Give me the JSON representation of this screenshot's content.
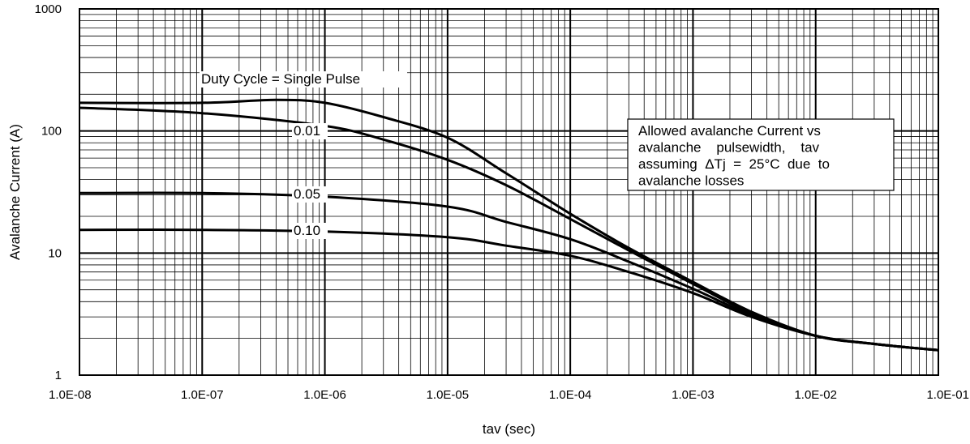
{
  "chart_data": {
    "type": "line",
    "xlabel": "tav (sec)",
    "ylabel": "Avalanche Current (A)",
    "x_scale": "log",
    "y_scale": "log",
    "xlim": [
      1e-08,
      0.1
    ],
    "ylim": [
      1,
      1000
    ],
    "grid": true,
    "x_tick_labels": [
      "1.0E-08",
      "1.0E-07",
      "1.0E-06",
      "1.0E-05",
      "1.0E-04",
      "1.0E-03",
      "1.0E-02",
      "1.0E-01"
    ],
    "y_tick_labels": [
      "1",
      "10",
      "100",
      "1000"
    ],
    "series": [
      {
        "name": "Duty Cycle = Single Pulse",
        "points": [
          [
            1e-08,
            170
          ],
          [
            1e-07,
            170
          ],
          [
            4e-07,
            180
          ],
          [
            1e-06,
            170
          ],
          [
            3e-06,
            130
          ],
          [
            1e-05,
            88
          ],
          [
            3e-05,
            45
          ],
          [
            0.0001,
            21
          ],
          [
            0.0003,
            11
          ],
          [
            0.001,
            5.8
          ],
          [
            0.003,
            3.3
          ],
          [
            0.01,
            2.1
          ],
          [
            0.03,
            1.8
          ],
          [
            0.1,
            1.6
          ]
        ]
      },
      {
        "name": "0.01",
        "points": [
          [
            1e-08,
            155
          ],
          [
            1e-07,
            140
          ],
          [
            1e-06,
            110
          ],
          [
            3e-06,
            85
          ],
          [
            1e-05,
            58
          ],
          [
            3e-05,
            36
          ],
          [
            0.0001,
            19
          ],
          [
            0.0003,
            10.5
          ],
          [
            0.001,
            5.6
          ],
          [
            0.003,
            3.2
          ],
          [
            0.01,
            2.1
          ],
          [
            0.03,
            1.8
          ],
          [
            0.1,
            1.6
          ]
        ]
      },
      {
        "name": "0.05",
        "points": [
          [
            1e-08,
            31
          ],
          [
            1e-07,
            31
          ],
          [
            1e-06,
            29
          ],
          [
            1e-05,
            24
          ],
          [
            3e-05,
            18
          ],
          [
            0.0001,
            13
          ],
          [
            0.0003,
            8.5
          ],
          [
            0.001,
            5.1
          ],
          [
            0.003,
            3.1
          ],
          [
            0.01,
            2.1
          ],
          [
            0.03,
            1.8
          ],
          [
            0.1,
            1.6
          ]
        ]
      },
      {
        "name": "0.10",
        "points": [
          [
            1e-08,
            15.5
          ],
          [
            1e-07,
            15.5
          ],
          [
            1e-06,
            15
          ],
          [
            1e-05,
            13.5
          ],
          [
            3e-05,
            11.5
          ],
          [
            0.0001,
            9.5
          ],
          [
            0.0003,
            7
          ],
          [
            0.001,
            4.7
          ],
          [
            0.003,
            3
          ],
          [
            0.01,
            2.1
          ],
          [
            0.03,
            1.8
          ],
          [
            0.1,
            1.6
          ]
        ]
      }
    ],
    "annotation_lines": [
      "Allowed avalanche Current vs",
      "avalanche    pulsewidth,    tav",
      "assuming  ΔTj  =  25°C  due  to",
      "avalanche losses"
    ]
  }
}
